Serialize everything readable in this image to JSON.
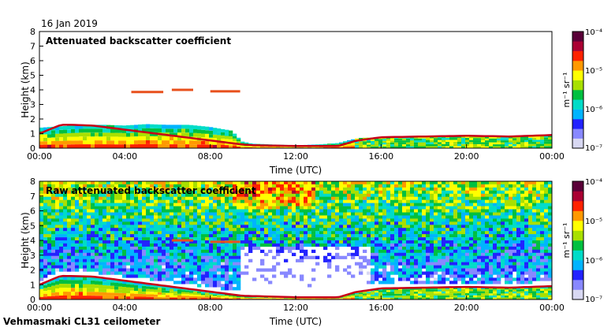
{
  "header": {
    "date": "16 Jan 2019"
  },
  "footer": {
    "site": "Vehmasmaki CL31 ceilometer"
  },
  "colors": {
    "scale": [
      "#d8d8f2",
      "#8888ff",
      "#2222ff",
      "#00b4ff",
      "#00dcc8",
      "#00c040",
      "#a8e000",
      "#ffff00",
      "#ff9900",
      "#ff2200",
      "#aa0033",
      "#5a0038"
    ],
    "cloud_layer": "#c80018",
    "frame": "#000000"
  },
  "chart_data": [
    {
      "type": "heatmap",
      "title": "Attenuated backscatter coefficient",
      "xlabel": "Time (UTC)",
      "ylabel": "Height (km)",
      "xticks": [
        "00:00",
        "04:00",
        "08:00",
        "12:00",
        "16:00",
        "20:00",
        "00:00"
      ],
      "yticks": [
        "0",
        "1",
        "2",
        "3",
        "4",
        "5",
        "6",
        "7",
        "8"
      ],
      "xlim_hours": [
        0,
        24
      ],
      "ylim": [
        0,
        8
      ],
      "colorbar": {
        "label": "m⁻¹ sr⁻¹",
        "ticks": [
          "10⁻⁷",
          "10⁻⁶",
          "10⁻⁵",
          "10⁻⁴"
        ]
      },
      "features": {
        "boundary_layer_top_km": [
          [
            0,
            1.4
          ],
          [
            1,
            1.5
          ],
          [
            2,
            1.6
          ],
          [
            3,
            1.6
          ],
          [
            4,
            1.55
          ],
          [
            5,
            1.65
          ],
          [
            6,
            1.6
          ],
          [
            7,
            1.6
          ],
          [
            8,
            1.45
          ],
          [
            9,
            1.2
          ],
          [
            9.5,
            0.45
          ],
          [
            10,
            0.3
          ],
          [
            11,
            0.25
          ],
          [
            12,
            0.2
          ],
          [
            13,
            0.25
          ],
          [
            14,
            0.35
          ],
          [
            14.5,
            0.55
          ],
          [
            15,
            0.7
          ],
          [
            16,
            0.75
          ],
          [
            17,
            0.8
          ],
          [
            18,
            0.8
          ],
          [
            19,
            0.85
          ],
          [
            20,
            0.85
          ],
          [
            21,
            0.8
          ],
          [
            22,
            0.8
          ],
          [
            23,
            0.85
          ],
          [
            24,
            0.9
          ]
        ],
        "cloud_base_km": [
          [
            0,
            1.0
          ],
          [
            1,
            1.6
          ],
          [
            1.5,
            1.6
          ],
          [
            2.5,
            1.55
          ],
          [
            9.5,
            0.25
          ],
          [
            10,
            0.2
          ],
          [
            12,
            0.15
          ],
          [
            14,
            0.15
          ],
          [
            14.8,
            0.5
          ],
          [
            16,
            0.75
          ],
          [
            18,
            0.8
          ],
          [
            20,
            0.85
          ],
          [
            22,
            0.8
          ],
          [
            24,
            0.9
          ]
        ],
        "elevated_layers": [
          {
            "start_h": 6.2,
            "end_h": 7.2,
            "height_km": 4.0
          },
          {
            "start_h": 8.0,
            "end_h": 9.4,
            "height_km": 3.9
          },
          {
            "start_h": 4.3,
            "end_h": 5.8,
            "height_km": 3.85
          }
        ]
      }
    },
    {
      "type": "heatmap",
      "title": "Raw attenuated backscatter coefficient",
      "xlabel": "Time (UTC)",
      "ylabel": "Height (km)",
      "xticks": [
        "00:00",
        "04:00",
        "08:00",
        "12:00",
        "16:00",
        "20:00",
        "00:00"
      ],
      "yticks": [
        "0",
        "1",
        "2",
        "3",
        "4",
        "5",
        "6",
        "7",
        "8"
      ],
      "xlim_hours": [
        0,
        24
      ],
      "ylim": [
        0,
        8
      ],
      "colorbar": {
        "label": "m⁻¹ sr⁻¹",
        "ticks": [
          "10⁻⁷",
          "10⁻⁶",
          "10⁻⁵",
          "10⁻⁴"
        ]
      },
      "features": {
        "noise": "full column noise increasing with height",
        "cloud_base_km": [
          [
            0,
            1.0
          ],
          [
            1,
            1.6
          ],
          [
            2.5,
            1.55
          ],
          [
            9.5,
            0.25
          ],
          [
            12,
            0.15
          ],
          [
            14,
            0.15
          ],
          [
            14.8,
            0.5
          ],
          [
            16,
            0.75
          ],
          [
            18,
            0.8
          ],
          [
            20,
            0.85
          ],
          [
            22,
            0.8
          ],
          [
            24,
            0.9
          ]
        ],
        "elevated_layers": [
          {
            "start_h": 6.2,
            "end_h": 7.2,
            "height_km": 4.0
          },
          {
            "start_h": 8.0,
            "end_h": 9.4,
            "height_km": 3.9
          }
        ]
      }
    }
  ]
}
